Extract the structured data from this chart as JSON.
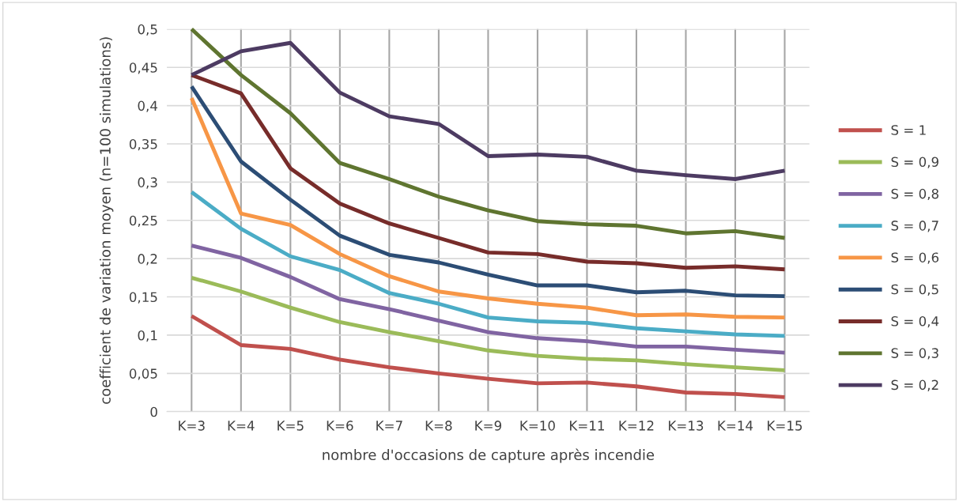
{
  "chart_data": {
    "type": "line",
    "xlabel": "nombre d'occasions de capture après incendie",
    "ylabel": "coefficient de variation moyen (n=100 simulations)",
    "categories": [
      "K=3",
      "K=4",
      "K=5",
      "K=6",
      "K=7",
      "K=8",
      "K=9",
      "K=10",
      "K=11",
      "K=12",
      "K=13",
      "K=14",
      "K=15"
    ],
    "ylim": [
      0,
      0.5
    ],
    "yticks": [
      {
        "value": 0,
        "label": "0"
      },
      {
        "value": 0.05,
        "label": "0,05"
      },
      {
        "value": 0.1,
        "label": "0,1"
      },
      {
        "value": 0.15,
        "label": "0,15"
      },
      {
        "value": 0.2,
        "label": "0,2"
      },
      {
        "value": 0.25,
        "label": "0,25"
      },
      {
        "value": 0.3,
        "label": "0,3"
      },
      {
        "value": 0.35,
        "label": "0,35"
      },
      {
        "value": 0.4,
        "label": "0,4"
      },
      {
        "value": 0.45,
        "label": "0,45"
      },
      {
        "value": 0.5,
        "label": "0,5"
      }
    ],
    "grid": true,
    "legend": "right",
    "marker": "none",
    "line_style": "solid",
    "series": [
      {
        "name": "S = 1",
        "color": "#c0504d",
        "values": [
          0.125,
          0.087,
          0.082,
          0.068,
          0.058,
          0.05,
          0.043,
          0.037,
          0.038,
          0.033,
          0.025,
          0.023,
          0.019
        ]
      },
      {
        "name": "S = 0,9",
        "color": "#9bbb59",
        "values": [
          0.175,
          0.157,
          0.136,
          0.117,
          0.104,
          0.092,
          0.08,
          0.073,
          0.069,
          0.067,
          0.062,
          0.058,
          0.054
        ]
      },
      {
        "name": "S = 0,8",
        "color": "#8064a2",
        "values": [
          0.217,
          0.201,
          0.176,
          0.147,
          0.134,
          0.119,
          0.104,
          0.096,
          0.092,
          0.085,
          0.085,
          0.081,
          0.077
        ]
      },
      {
        "name": "S = 0,7",
        "color": "#4bacc6",
        "values": [
          0.287,
          0.239,
          0.203,
          0.185,
          0.155,
          0.141,
          0.123,
          0.118,
          0.116,
          0.109,
          0.105,
          0.101,
          0.099
        ]
      },
      {
        "name": "S = 0,6",
        "color": "#f79646",
        "values": [
          0.41,
          0.259,
          0.244,
          0.206,
          0.177,
          0.157,
          0.148,
          0.141,
          0.136,
          0.126,
          0.127,
          0.124,
          0.123
        ]
      },
      {
        "name": "S = 0,5",
        "color": "#2c4d75",
        "values": [
          0.425,
          0.327,
          0.277,
          0.23,
          0.205,
          0.195,
          0.179,
          0.165,
          0.165,
          0.156,
          0.158,
          0.152,
          0.151
        ]
      },
      {
        "name": "S = 0,4",
        "color": "#772c2a",
        "values": [
          0.44,
          0.416,
          0.318,
          0.272,
          0.246,
          0.227,
          0.208,
          0.206,
          0.196,
          0.194,
          0.188,
          0.19,
          0.186
        ]
      },
      {
        "name": "S = 0,3",
        "color": "#5f7530",
        "values": [
          0.5,
          0.44,
          0.39,
          0.325,
          0.304,
          0.281,
          0.263,
          0.249,
          0.245,
          0.243,
          0.233,
          0.236,
          0.227
        ]
      },
      {
        "name": "S = 0,2",
        "color": "#4d3b62",
        "values": [
          0.44,
          0.471,
          0.482,
          0.417,
          0.386,
          0.376,
          0.334,
          0.336,
          0.333,
          0.315,
          0.309,
          0.304,
          0.315
        ]
      }
    ]
  }
}
